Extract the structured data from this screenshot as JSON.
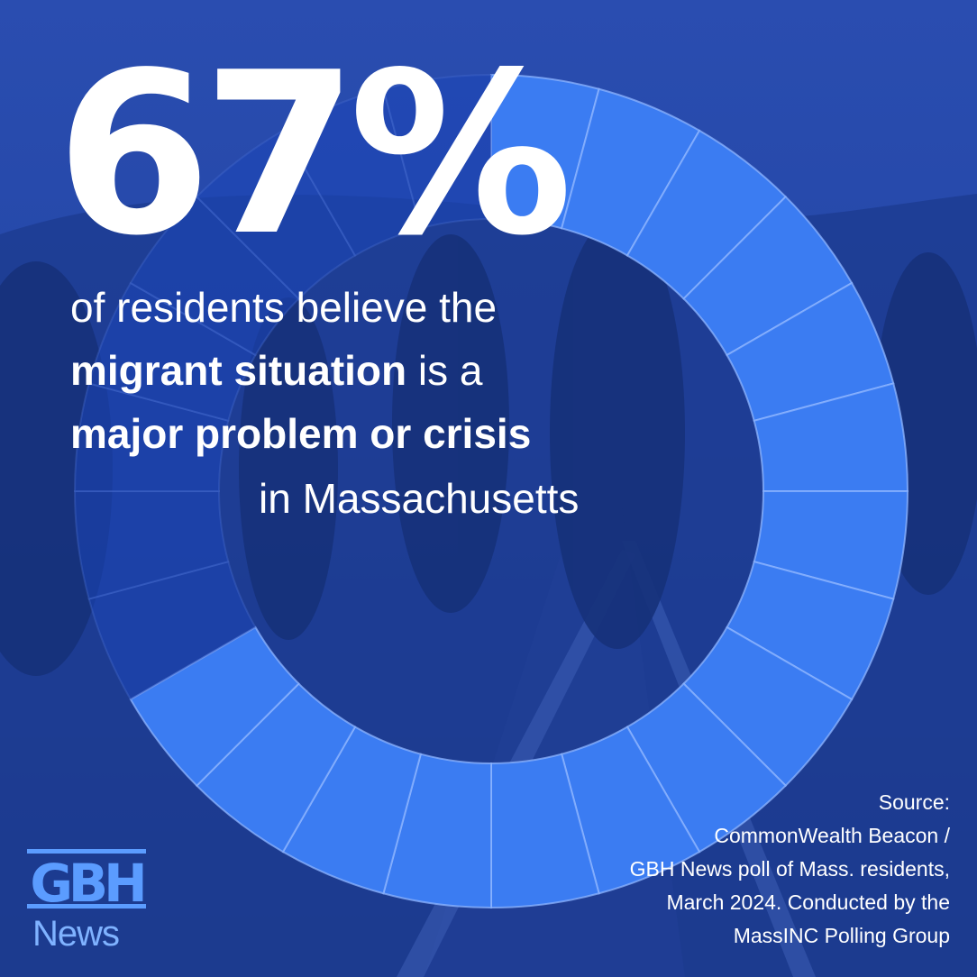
{
  "chart_data": {
    "type": "pie",
    "title": "67%",
    "values": [
      67,
      33
    ],
    "segments": 24,
    "filled_color": "#3b7cf2",
    "empty_color": "#1c46b8",
    "start_angle_deg": 0,
    "direction": "clockwise"
  },
  "headline": {
    "line1": "of residents believe the",
    "line2_bold": "migrant situation",
    "line2_rest": " is a",
    "line3_bold": "major problem or crisis",
    "line4": "in Massachusetts"
  },
  "source": {
    "label": "Source:",
    "line1": "CommonWealth Beacon /",
    "line2": "GBH News poll of Mass. residents,",
    "line3": "March 2024. Conducted by the",
    "line4": "MassINC Polling Group"
  },
  "logo": {
    "mark": "GBH",
    "sub": "News"
  },
  "colors": {
    "background": "#1f3f9a",
    "text": "#ffffff",
    "logo": "#5b9cff"
  }
}
